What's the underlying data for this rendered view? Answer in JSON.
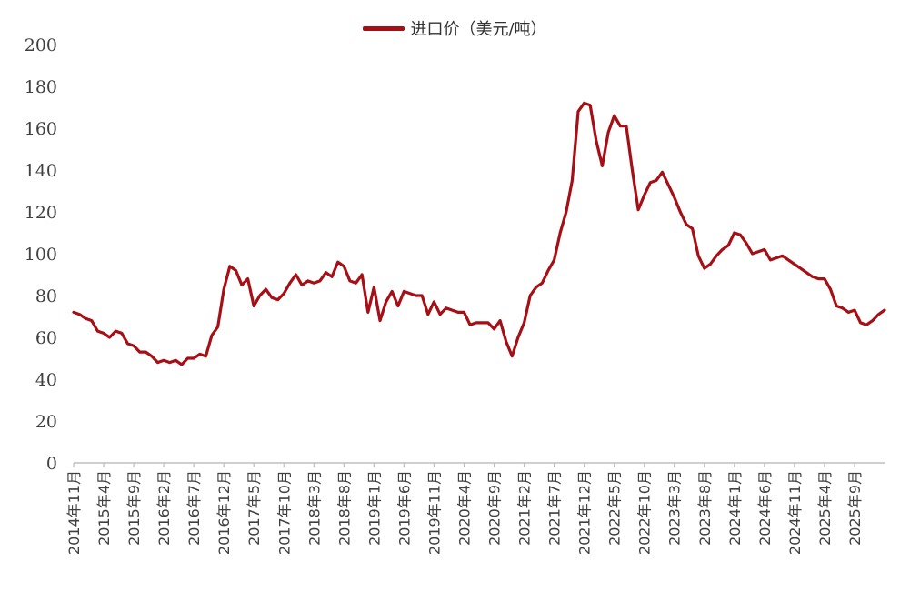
{
  "legend": {
    "label": "进口价（美元/吨）"
  },
  "colors": {
    "series": "#a50f15",
    "axis": "#bfbfbf",
    "text": "#404040"
  },
  "chart_data": {
    "type": "line",
    "title": "",
    "xlabel": "",
    "ylabel": "",
    "ylim": [
      0,
      200
    ],
    "yticks": [
      0,
      20,
      40,
      60,
      80,
      100,
      120,
      140,
      160,
      180,
      200
    ],
    "grid": false,
    "legend_position": "top-center",
    "xtick_labels": [
      "2014年11月",
      "2015年4月",
      "2015年9月",
      "2016年2月",
      "2016年7月",
      "2016年12月",
      "2017年5月",
      "2017年10月",
      "2018年3月",
      "2018年8月",
      "2019年1月",
      "2019年6月",
      "2019年11月",
      "2020年4月",
      "2020年9月",
      "2021年2月",
      "2021年7月",
      "2021年12月",
      "2022年5月",
      "2022年10月",
      "2023年3月",
      "2023年8月",
      "2024年1月",
      "2024年6月",
      "2024年11月",
      "2025年4月",
      "2025年9月"
    ],
    "series": [
      {
        "name": "进口价（美元/吨）",
        "values": [
          72,
          71,
          69,
          68,
          63,
          62,
          60,
          63,
          62,
          57,
          56,
          53,
          53,
          51,
          48,
          49,
          48,
          49,
          47,
          50,
          50,
          52,
          51,
          61,
          65,
          83,
          94,
          92,
          85,
          88,
          75,
          80,
          83,
          79,
          78,
          81,
          86,
          90,
          85,
          87,
          86,
          87,
          91,
          89,
          96,
          94,
          87,
          86,
          90,
          72,
          84,
          68,
          77,
          82,
          75,
          82,
          81,
          80,
          80,
          71,
          77,
          71,
          74,
          73,
          72,
          72,
          66,
          67,
          67,
          67,
          64,
          68,
          58,
          51,
          60,
          67,
          80,
          84,
          86,
          92,
          97,
          110,
          120,
          135,
          168,
          172,
          171,
          154,
          142,
          158,
          166,
          161,
          161,
          140,
          121,
          128,
          134,
          135,
          139,
          133,
          127,
          120,
          114,
          112,
          99,
          93,
          95,
          99,
          102,
          104,
          110,
          109,
          105,
          100,
          101,
          102,
          97,
          98,
          99,
          97,
          95,
          93,
          91,
          89,
          88,
          88,
          83,
          75,
          74,
          72,
          73,
          67,
          66,
          68,
          71,
          73
        ]
      }
    ]
  }
}
